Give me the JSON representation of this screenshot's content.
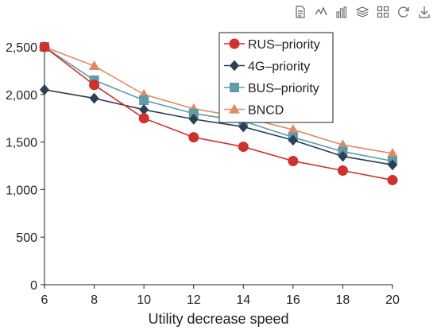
{
  "toolbox": {
    "tools": [
      {
        "name": "data-view-icon",
        "title": "Data view"
      },
      {
        "name": "line-chart-icon",
        "title": "Switch to line chart"
      },
      {
        "name": "bar-chart-icon",
        "title": "Switch to bar chart"
      },
      {
        "name": "stack-icon",
        "title": "Stack"
      },
      {
        "name": "zoom-icon",
        "title": "Zoom"
      },
      {
        "name": "restore-icon",
        "title": "Restore"
      },
      {
        "name": "download-icon",
        "title": "Save as image"
      }
    ]
  },
  "chart_data": {
    "type": "line",
    "title": "",
    "xlabel": "Utility decrease speed",
    "ylabel": "",
    "x": [
      6,
      8,
      10,
      12,
      14,
      16,
      18,
      20
    ],
    "xlim": [
      6,
      20
    ],
    "ylim": [
      0,
      2500
    ],
    "x_ticks": [
      "6",
      "8",
      "10",
      "12",
      "14",
      "16",
      "18",
      "20"
    ],
    "y_ticks": [
      "0",
      "500",
      "1,000",
      "1,500",
      "2,000",
      "2,500"
    ],
    "grid": false,
    "legend_position": "top-right",
    "series": [
      {
        "name": "RUS–priority",
        "marker": "circle",
        "color": "#d0312d",
        "values": [
          2500,
          2100,
          1750,
          1550,
          1450,
          1300,
          1200,
          1100
        ]
      },
      {
        "name": "4G–priority",
        "marker": "diamond",
        "color": "#2b3f55",
        "values": [
          2050,
          1960,
          1840,
          1740,
          1660,
          1520,
          1350,
          1260
        ]
      },
      {
        "name": "BUS–priority",
        "marker": "square",
        "color": "#5e9ca8",
        "values": [
          2500,
          2150,
          1940,
          1800,
          1720,
          1550,
          1400,
          1300
        ]
      },
      {
        "name": "BNCD",
        "marker": "triangle",
        "color": "#e08a62",
        "values": [
          2500,
          2300,
          2000,
          1850,
          1760,
          1630,
          1470,
          1380
        ]
      }
    ]
  }
}
